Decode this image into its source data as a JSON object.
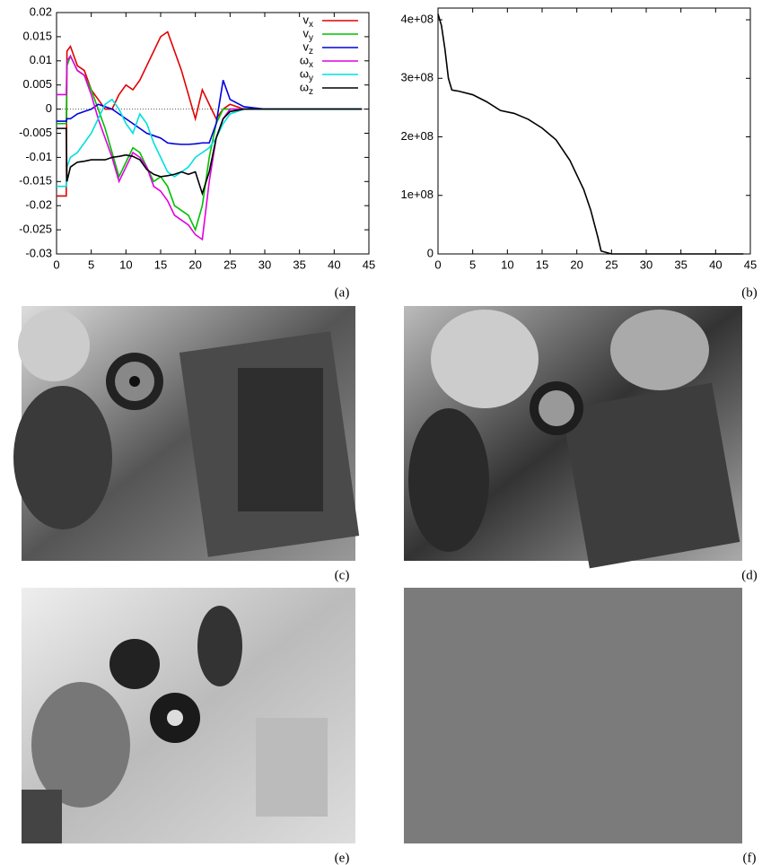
{
  "chart_data": [
    {
      "type": "line",
      "legend": "upper right",
      "zero_line": true,
      "x": [
        0,
        1.4,
        1.5,
        2,
        3,
        4,
        5,
        6,
        7,
        8,
        9,
        10,
        11,
        12,
        13,
        14,
        15,
        16,
        17,
        18,
        19,
        20,
        21,
        22,
        23,
        24,
        25,
        27,
        30,
        35,
        40,
        44
      ],
      "series": [
        {
          "name": "vx",
          "color": "#e00000",
          "values": [
            -0.018,
            -0.018,
            0.012,
            0.013,
            0.009,
            0.008,
            0.004,
            0.002,
            0.0,
            0.0,
            0.003,
            0.005,
            0.004,
            0.006,
            0.009,
            0.012,
            0.015,
            0.016,
            0.012,
            0.008,
            0.003,
            -0.002,
            0.004,
            0.001,
            -0.002,
            0.0,
            0.001,
            0,
            0,
            0,
            0,
            0
          ]
        },
        {
          "name": "vy",
          "color": "#00c000",
          "values": [
            -0.003,
            -0.003,
            0.009,
            0.011,
            0.008,
            0.007,
            0.004,
            0.0,
            -0.004,
            -0.009,
            -0.014,
            -0.011,
            -0.008,
            -0.009,
            -0.012,
            -0.015,
            -0.014,
            -0.016,
            -0.02,
            -0.021,
            -0.022,
            -0.025,
            -0.02,
            -0.01,
            -0.003,
            0.0,
            0.0,
            0,
            0,
            0,
            0,
            0
          ]
        },
        {
          "name": "vz",
          "color": "#0000e0",
          "values": [
            -0.0025,
            -0.0025,
            -0.002,
            -0.002,
            -0.001,
            -0.0005,
            0.0,
            0.001,
            0.0005,
            0.0,
            -0.001,
            -0.002,
            -0.003,
            -0.004,
            -0.005,
            -0.0055,
            -0.006,
            -0.007,
            -0.0072,
            -0.0073,
            -0.0073,
            -0.0072,
            -0.007,
            -0.007,
            -0.003,
            0.006,
            0.002,
            0.0005,
            0,
            0,
            0,
            0
          ]
        },
        {
          "name": "ωx",
          "color": "#e000e0",
          "values": [
            0.003,
            0.003,
            0.01,
            0.011,
            0.008,
            0.007,
            0.003,
            -0.002,
            -0.006,
            -0.01,
            -0.015,
            -0.012,
            -0.009,
            -0.01,
            -0.012,
            -0.016,
            -0.017,
            -0.019,
            -0.022,
            -0.023,
            -0.024,
            -0.026,
            -0.027,
            -0.015,
            -0.006,
            -0.002,
            0,
            0,
            0,
            0,
            0,
            0
          ]
        },
        {
          "name": "ωy",
          "color": "#00e0e0",
          "values": [
            -0.016,
            -0.016,
            -0.012,
            -0.01,
            -0.009,
            -0.007,
            -0.005,
            -0.002,
            0.001,
            0.002,
            0.0,
            -0.003,
            -0.005,
            -0.001,
            -0.003,
            -0.007,
            -0.01,
            -0.013,
            -0.014,
            -0.013,
            -0.012,
            -0.01,
            -0.009,
            -0.008,
            -0.006,
            -0.003,
            -0.001,
            0,
            0,
            0,
            0,
            0
          ]
        },
        {
          "name": "ωz",
          "color": "#000000",
          "values": [
            -0.004,
            -0.004,
            -0.015,
            -0.012,
            -0.011,
            -0.0108,
            -0.0105,
            -0.0105,
            -0.0105,
            -0.01,
            -0.0098,
            -0.0095,
            -0.0098,
            -0.0105,
            -0.0125,
            -0.0135,
            -0.014,
            -0.0138,
            -0.0135,
            -0.013,
            -0.0135,
            -0.013,
            -0.0175,
            -0.013,
            -0.006,
            -0.002,
            -0.0005,
            0,
            0,
            0,
            0,
            0
          ]
        }
      ],
      "xlim": [
        0,
        45
      ],
      "xticks": [
        0,
        5,
        10,
        15,
        20,
        25,
        30,
        35,
        40,
        45
      ],
      "ylim": [
        -0.03,
        0.02
      ],
      "yticks": [
        -0.03,
        -0.025,
        -0.02,
        -0.015,
        -0.01,
        -0.005,
        0,
        0.005,
        0.01,
        0.015,
        0.02
      ]
    },
    {
      "type": "line",
      "color": "#000000",
      "x": [
        0,
        0.5,
        1,
        1.5,
        2,
        3,
        5,
        7,
        9,
        11,
        13,
        15,
        17,
        19,
        21,
        22,
        23,
        23.5,
        25,
        30,
        35,
        44
      ],
      "values": [
        410000000,
        390000000,
        350000000,
        300000000,
        280000000,
        278000000,
        272000000,
        260000000,
        245000000,
        240000000,
        230000000,
        215000000,
        195000000,
        160000000,
        110000000,
        75000000,
        30000000,
        5000000,
        0,
        0,
        0,
        0
      ],
      "xlim": [
        0,
        45
      ],
      "xticks": [
        0,
        5,
        10,
        15,
        20,
        25,
        30,
        35,
        40,
        45
      ],
      "ylim": [
        0,
        420000000
      ],
      "yticks": [
        0,
        {
          "value": 100000000,
          "label": "1e+08"
        },
        {
          "value": 200000000,
          "label": "2e+08"
        },
        {
          "value": 300000000,
          "label": "3e+08"
        },
        {
          "value": 400000000,
          "label": "4e+08"
        }
      ]
    }
  ],
  "panel_labels": [
    "(a)",
    "(b)",
    "(c)",
    "(d)",
    "(e)",
    "(f)"
  ]
}
